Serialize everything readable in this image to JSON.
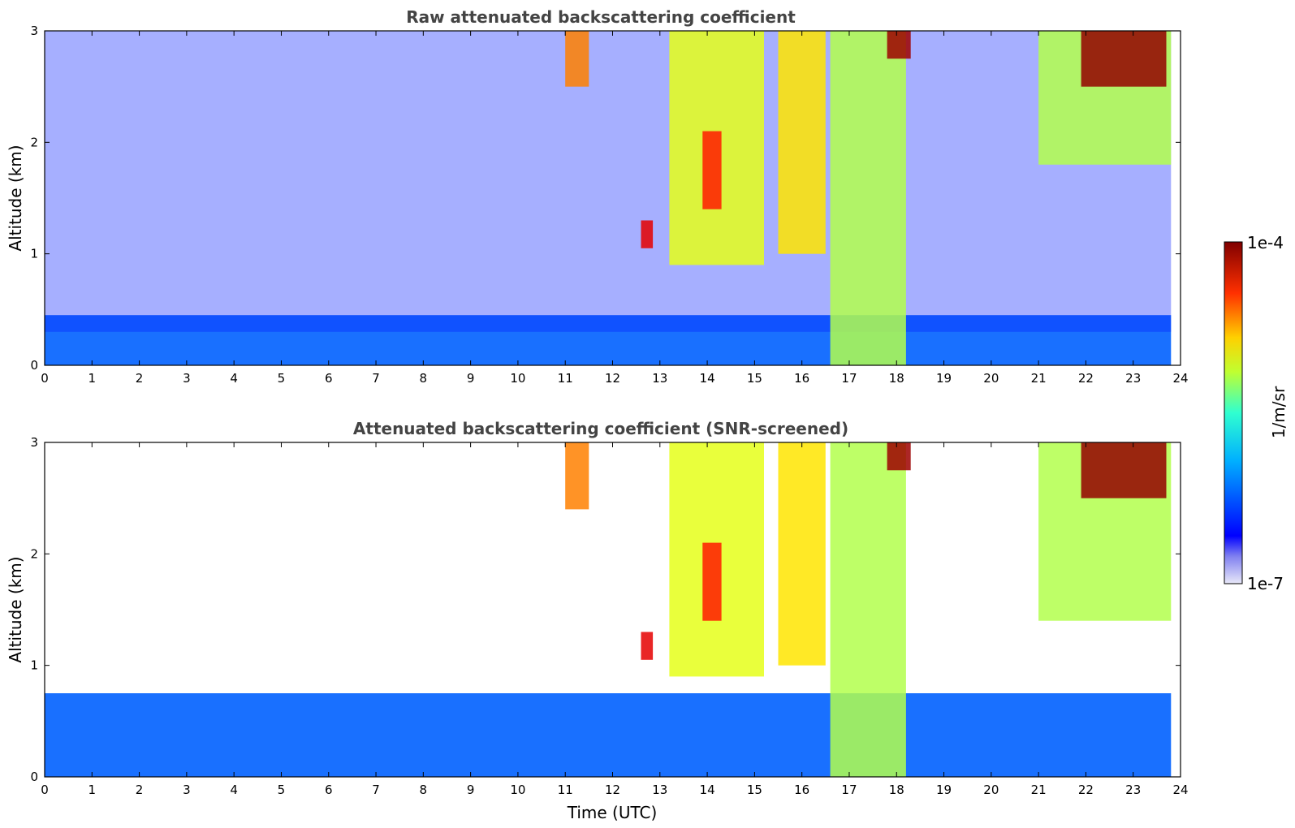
{
  "chart_data": [
    {
      "type": "heatmap",
      "title": "Raw attenuated backscattering coefficient",
      "xlabel": "",
      "ylabel": "Altitude (km)",
      "xlim": [
        0,
        24
      ],
      "ylim": [
        0,
        3
      ],
      "xticks": [
        "0",
        "1",
        "2",
        "3",
        "4",
        "5",
        "6",
        "7",
        "8",
        "9",
        "10",
        "11",
        "12",
        "13",
        "14",
        "15",
        "16",
        "17",
        "18",
        "19",
        "20",
        "21",
        "22",
        "23",
        "24"
      ],
      "yticks": [
        "0",
        "1",
        "2",
        "3"
      ],
      "colorscale": "jet",
      "features": [
        {
          "kind": "boundary-layer",
          "x": [
            0,
            23.8
          ],
          "y": [
            0,
            0.45
          ],
          "level": 0.22
        },
        {
          "kind": "noise-background",
          "x": [
            0,
            23.8
          ],
          "y": [
            0.3,
            3
          ],
          "level": 0.15
        },
        {
          "kind": "cloud",
          "x": [
            13.2,
            15.2
          ],
          "y": [
            0.9,
            3
          ],
          "level": 0.6
        },
        {
          "kind": "cloud",
          "x": [
            13.9,
            14.3
          ],
          "y": [
            1.4,
            2.1
          ],
          "level": 0.85
        },
        {
          "kind": "cloud",
          "x": [
            15.5,
            16.5
          ],
          "y": [
            1.0,
            3
          ],
          "level": 0.65
        },
        {
          "kind": "cloud",
          "x": [
            16.6,
            18.2
          ],
          "y": [
            0,
            3
          ],
          "level": 0.55
        },
        {
          "kind": "cloud",
          "x": [
            21.0,
            23.8
          ],
          "y": [
            1.8,
            3
          ],
          "level": 0.55
        },
        {
          "kind": "cloud",
          "x": [
            21.9,
            23.7
          ],
          "y": [
            2.5,
            3
          ],
          "level": 0.98
        },
        {
          "kind": "cloud",
          "x": [
            11.0,
            11.5
          ],
          "y": [
            2.5,
            3
          ],
          "level": 0.75
        },
        {
          "kind": "cloud",
          "x": [
            17.8,
            18.3
          ],
          "y": [
            2.75,
            3
          ],
          "level": 0.97
        },
        {
          "kind": "cloud",
          "x": [
            12.6,
            12.85
          ],
          "y": [
            1.05,
            1.3
          ],
          "level": 0.9
        }
      ]
    },
    {
      "type": "heatmap",
      "title": "Attenuated backscattering coefficient (SNR-screened)",
      "xlabel": "Time (UTC)",
      "ylabel": "Altitude (km)",
      "xlim": [
        0,
        24
      ],
      "ylim": [
        0,
        3
      ],
      "xticks": [
        "0",
        "1",
        "2",
        "3",
        "4",
        "5",
        "6",
        "7",
        "8",
        "9",
        "10",
        "11",
        "12",
        "13",
        "14",
        "15",
        "16",
        "17",
        "18",
        "19",
        "20",
        "21",
        "22",
        "23",
        "24"
      ],
      "yticks": [
        "0",
        "1",
        "2",
        "3"
      ],
      "colorscale": "jet",
      "features": [
        {
          "kind": "boundary-layer",
          "x": [
            0,
            23.8
          ],
          "y": [
            0,
            0.75
          ],
          "level": 0.22
        },
        {
          "kind": "cloud",
          "x": [
            13.2,
            15.2
          ],
          "y": [
            0.9,
            3
          ],
          "level": 0.6
        },
        {
          "kind": "cloud",
          "x": [
            13.9,
            14.3
          ],
          "y": [
            1.4,
            2.1
          ],
          "level": 0.85
        },
        {
          "kind": "cloud",
          "x": [
            15.5,
            16.5
          ],
          "y": [
            1.0,
            3
          ],
          "level": 0.65
        },
        {
          "kind": "cloud",
          "x": [
            16.6,
            18.2
          ],
          "y": [
            0,
            3
          ],
          "level": 0.55
        },
        {
          "kind": "cloud",
          "x": [
            21.0,
            23.8
          ],
          "y": [
            1.4,
            3
          ],
          "level": 0.55
        },
        {
          "kind": "cloud",
          "x": [
            21.9,
            23.7
          ],
          "y": [
            2.5,
            3
          ],
          "level": 0.98
        },
        {
          "kind": "cloud",
          "x": [
            11.0,
            11.5
          ],
          "y": [
            2.4,
            3
          ],
          "level": 0.75
        },
        {
          "kind": "cloud",
          "x": [
            17.8,
            18.3
          ],
          "y": [
            2.75,
            3
          ],
          "level": 0.97
        },
        {
          "kind": "cloud",
          "x": [
            12.6,
            12.85
          ],
          "y": [
            1.05,
            1.3
          ],
          "level": 0.9
        }
      ]
    }
  ],
  "colorbar": {
    "label": "1/m/sr",
    "max_label": "1e-4",
    "min_label": "1e-7",
    "scale": "log"
  }
}
